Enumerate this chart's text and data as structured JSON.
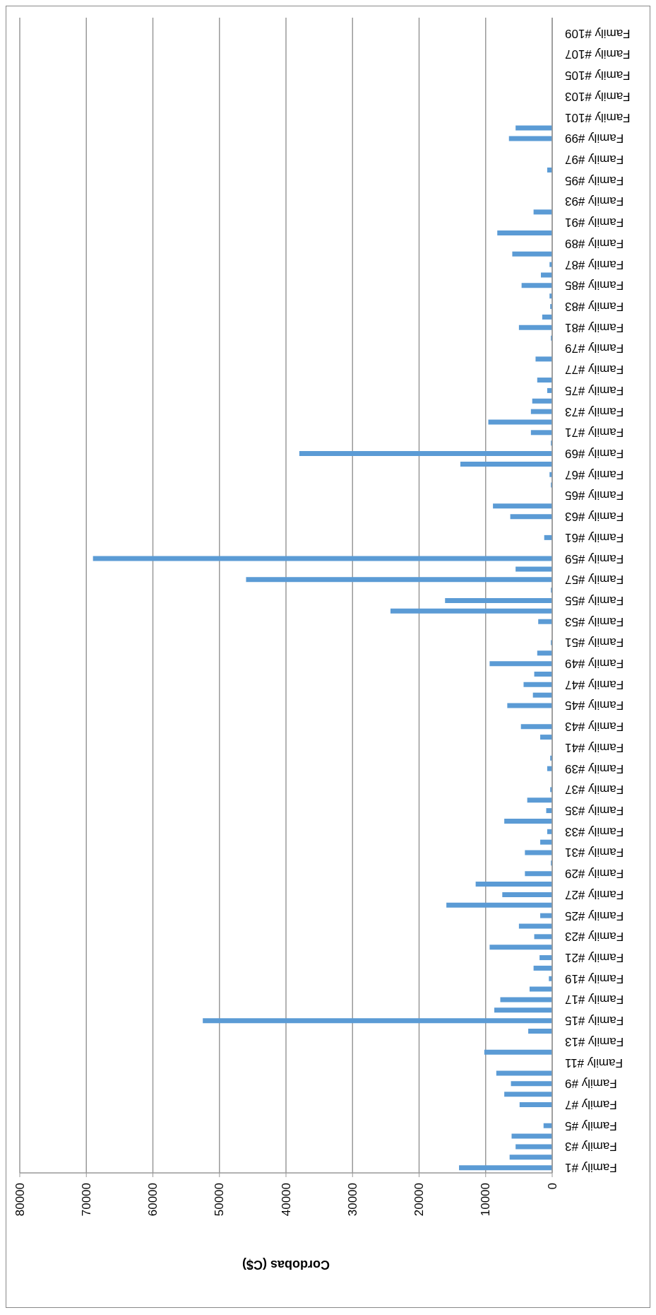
{
  "chart_data": {
    "type": "bar",
    "orientation": "horizontal",
    "xlabel": "Cordobas (C$)",
    "categories": [
      null,
      "Family #109",
      null,
      "Family #107",
      null,
      "Family #105",
      null,
      "Family #103",
      null,
      "Family #101",
      null,
      "Family #99",
      null,
      "Family #97",
      null,
      "Family #95",
      null,
      "Family #93",
      null,
      "Family #91",
      null,
      "Family #89",
      null,
      "Family #87",
      null,
      "Family #85",
      null,
      "Family #83",
      null,
      "Family #81",
      null,
      "Family #79",
      null,
      "Family #77",
      null,
      "Family #75",
      null,
      "Family #73",
      null,
      "Family #71",
      null,
      "Family #69",
      null,
      "Family #67",
      null,
      "Family #65",
      null,
      "Family #63",
      null,
      "Family #61",
      null,
      "Family #59",
      null,
      "Family #57",
      null,
      "Family #55",
      null,
      "Family #53",
      null,
      "Family #51",
      null,
      "Family #49",
      null,
      "Family #47",
      null,
      "Family #45",
      null,
      "Family #43",
      null,
      "Family #41",
      null,
      "Family #39",
      null,
      "Family #37",
      null,
      "Family #35",
      null,
      "Family #33",
      null,
      "Family #31",
      null,
      "Family #29",
      null,
      "Family #27",
      null,
      "Family #25",
      null,
      "Family #23",
      null,
      "Family #21",
      null,
      "Family #19",
      null,
      "Family #17",
      null,
      "Family #15",
      null,
      "Family #13",
      null,
      "Family #11",
      null,
      "Family #9",
      null,
      "Family #7",
      null,
      "Family #5",
      null,
      "Family #3",
      null,
      "Family #1"
    ],
    "values": [
      0,
      0,
      0,
      0,
      0,
      0,
      0,
      0,
      0,
      0,
      5500,
      6500,
      0,
      0,
      750,
      0,
      0,
      0,
      2800,
      0,
      8250,
      0,
      6000,
      400,
      1700,
      4600,
      400,
      300,
      1500,
      5000,
      200,
      0,
      2500,
      0,
      2250,
      750,
      3000,
      3200,
      9600,
      3200,
      200,
      38000,
      13800,
      400,
      200,
      0,
      8900,
      6300,
      0,
      1200,
      0,
      69000,
      5500,
      46000,
      200,
      16100,
      24300,
      2100,
      0,
      200,
      2250,
      9400,
      2700,
      4300,
      2900,
      6750,
      0,
      4700,
      1800,
      0,
      300,
      750,
      0,
      300,
      3750,
      900,
      7200,
      750,
      1800,
      4100,
      200,
      4100,
      11500,
      7500,
      15900,
      1800,
      5000,
      2700,
      9400,
      1900,
      2800,
      500,
      3400,
      7800,
      8700,
      52500,
      3600,
      0,
      10200,
      0,
      8400,
      6200,
      7200,
      4900,
      0,
      1300,
      6100,
      5500,
      6400,
      14000
    ],
    "color": "#5b9bd5",
    "xlim": [
      80000,
      0
    ],
    "xticks": [
      80000,
      70000,
      60000,
      50000,
      40000,
      30000,
      20000,
      10000,
      0
    ],
    "grid": "x"
  }
}
